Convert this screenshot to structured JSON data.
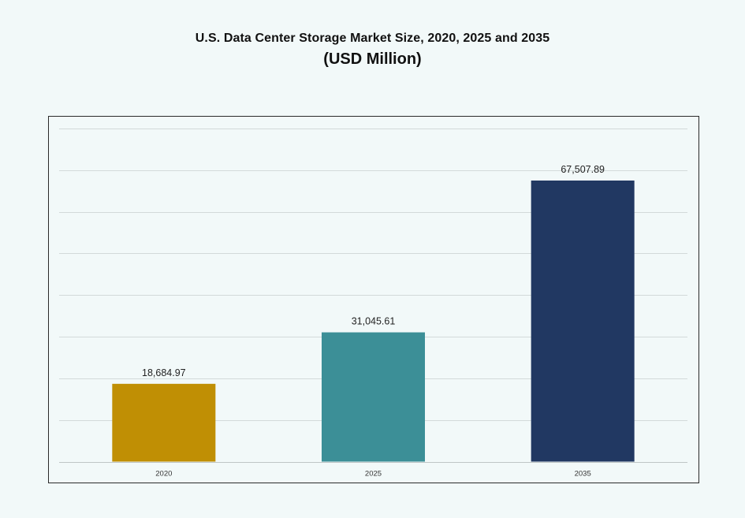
{
  "chart_data": {
    "type": "bar",
    "title": "U.S. Data Center Storage Market Size, 2020, 2025 and 2035",
    "subtitle": "(USD Million)",
    "categories": [
      "2020",
      "2025",
      "2035"
    ],
    "values": [
      18684.97,
      31045.61,
      67507.89
    ],
    "value_labels": [
      "18,684.97",
      "31,045.61",
      "67,507.89"
    ],
    "colors": [
      "#c08f04",
      "#3c8f97",
      "#213862"
    ],
    "ylim": [
      0,
      80000
    ],
    "grid": true,
    "xlabel": "",
    "ylabel": ""
  }
}
